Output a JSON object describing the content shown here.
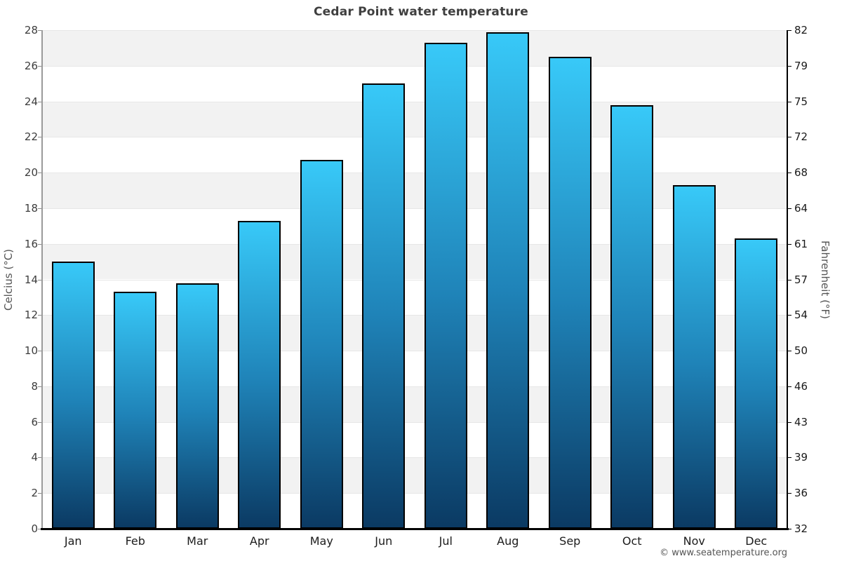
{
  "page": {
    "copyright": "© www.seatemperature.org"
  },
  "chart_data": {
    "type": "bar",
    "title": "Cedar Point water temperature",
    "categories": [
      "Jan",
      "Feb",
      "Mar",
      "Apr",
      "May",
      "Jun",
      "Jul",
      "Aug",
      "Sep",
      "Oct",
      "Nov",
      "Dec"
    ],
    "values": [
      15.0,
      13.3,
      13.8,
      17.3,
      20.7,
      25.0,
      27.3,
      27.9,
      26.5,
      23.8,
      19.3,
      16.3
    ],
    "units": "°C",
    "ylabel_left": "Celcius (°C)",
    "ylabel_right": "Fahrenheit (°F)",
    "xlabel": "",
    "ylim": [
      0,
      28
    ],
    "yticks_left": [
      0,
      2,
      4,
      6,
      8,
      10,
      12,
      14,
      16,
      18,
      20,
      22,
      24,
      26,
      28
    ],
    "yticks_right_labels": [
      "32",
      "36",
      "39",
      "43",
      "46",
      "50",
      "54",
      "57",
      "61",
      "64",
      "68",
      "72",
      "75",
      "79",
      "82"
    ],
    "legend": "none",
    "grid": "alternating-horizontal-bands",
    "colors": {
      "bar_gradient_top": "#38c9f8",
      "bar_gradient_mid": "#1f83b8",
      "bar_gradient_bottom": "#0b3a63",
      "bar_border": "#000000",
      "band_gray": "#f2f2f2",
      "band_white": "#ffffff",
      "gridline": "#e7e7e7",
      "title_text": "#3f3f3f",
      "axis_text": "#555555"
    }
  }
}
